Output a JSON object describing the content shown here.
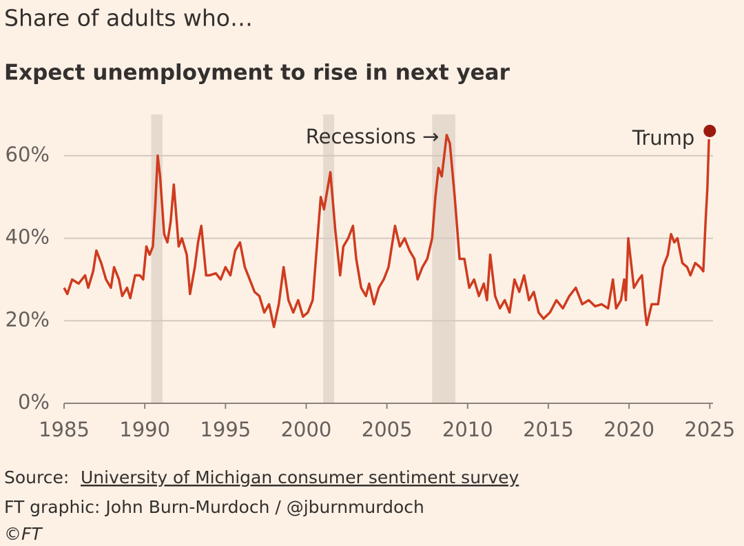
{
  "chart_data": {
    "type": "line",
    "title": "Share of adults who…",
    "subtitle": "Expect unemployment to rise in next year",
    "x": [
      1985.0,
      1985.2,
      1985.5,
      1985.9,
      1986.3,
      1986.5,
      1986.8,
      1987.0,
      1987.3,
      1987.6,
      1987.9,
      1988.1,
      1988.4,
      1988.6,
      1988.9,
      1989.1,
      1989.4,
      1989.7,
      1989.9,
      1990.1,
      1990.3,
      1990.5,
      1990.65,
      1990.8,
      1990.95,
      1991.2,
      1991.4,
      1991.6,
      1991.8,
      1992.1,
      1992.3,
      1992.6,
      1992.8,
      1993.1,
      1993.3,
      1993.5,
      1993.8,
      1994.0,
      1994.4,
      1994.7,
      1995.0,
      1995.3,
      1995.6,
      1995.9,
      1996.2,
      1996.5,
      1996.8,
      1997.1,
      1997.4,
      1997.7,
      1998.0,
      1998.3,
      1998.6,
      1998.9,
      1999.2,
      1999.5,
      1999.8,
      2000.1,
      2000.4,
      2000.7,
      2000.9,
      2001.1,
      2001.5,
      2001.8,
      2002.1,
      2002.3,
      2002.6,
      2002.9,
      2003.1,
      2003.4,
      2003.7,
      2003.9,
      2004.2,
      2004.5,
      2004.8,
      2005.1,
      2005.5,
      2005.8,
      2006.1,
      2006.4,
      2006.7,
      2006.9,
      2007.2,
      2007.5,
      2007.8,
      2008.0,
      2008.2,
      2008.4,
      2008.7,
      2008.9,
      2009.2,
      2009.5,
      2009.8,
      2010.1,
      2010.4,
      2010.7,
      2011.0,
      2011.2,
      2011.4,
      2011.7,
      2012.0,
      2012.3,
      2012.6,
      2012.9,
      2013.2,
      2013.5,
      2013.8,
      2014.1,
      2014.4,
      2014.7,
      2015.1,
      2015.5,
      2015.9,
      2016.3,
      2016.7,
      2017.1,
      2017.5,
      2017.9,
      2018.3,
      2018.7,
      2019.0,
      2019.2,
      2019.5,
      2019.7,
      2019.8,
      2019.95,
      2020.3,
      2020.6,
      2020.8,
      2021.0,
      2021.1,
      2021.4,
      2021.8,
      2022.1,
      2022.4,
      2022.6,
      2022.8,
      2023.0,
      2023.3,
      2023.6,
      2023.8,
      2024.1,
      2024.4,
      2024.6,
      2024.75,
      2024.85,
      2024.95
    ],
    "values": [
      28,
      26.5,
      30,
      29,
      31,
      28,
      32,
      37,
      34,
      30,
      28,
      33,
      30,
      26,
      28,
      25.5,
      31,
      31,
      30,
      38,
      36,
      38,
      48,
      60,
      55,
      41,
      39,
      44,
      53,
      38,
      40,
      36,
      26.5,
      33,
      39,
      43,
      31,
      31,
      31.5,
      30,
      33,
      31,
      37,
      39,
      33,
      30,
      27,
      26,
      22,
      24,
      18.5,
      24,
      33,
      25,
      22,
      25,
      21,
      22,
      25,
      40,
      50,
      47,
      56,
      42,
      31,
      38,
      40,
      43,
      35,
      28,
      26,
      29,
      24,
      28,
      30,
      33,
      43,
      38,
      40,
      37,
      35,
      30,
      33,
      35,
      40,
      50,
      57,
      55,
      65,
      63,
      50,
      35,
      35,
      28,
      30,
      26,
      29,
      25,
      36,
      26,
      23,
      25,
      22,
      30,
      27,
      31,
      25,
      27,
      22,
      20.5,
      22,
      25,
      23,
      26,
      28,
      24,
      25,
      23.5,
      24,
      23,
      30,
      23,
      25,
      30,
      25,
      40,
      28,
      30,
      31,
      22,
      19,
      24,
      24,
      33,
      36,
      41,
      39,
      40,
      34,
      33,
      31,
      34,
      33,
      32,
      45,
      52,
      64
    ],
    "color": "#cf3b1e",
    "highlight": {
      "label": "Trump",
      "x": 2025,
      "value": 66,
      "color": "#9b1a0e"
    },
    "recessions": [
      {
        "start": 1990.4,
        "end": 1991.1
      },
      {
        "start": 2001.05,
        "end": 2001.73
      },
      {
        "start": 2007.8,
        "end": 2009.24
      }
    ],
    "recession_label": "Recessions →",
    "xlim": [
      1985,
      2025.2
    ],
    "xticks": [
      1985,
      1990,
      1995,
      2000,
      2005,
      2010,
      2015,
      2020,
      2025
    ],
    "ylim": [
      0,
      70
    ],
    "yticks": [
      {
        "value": 0,
        "label": "0%"
      },
      {
        "value": 20,
        "label": "20%"
      },
      {
        "value": 40,
        "label": "40%"
      },
      {
        "value": 60,
        "label": "60%"
      }
    ],
    "grid": true,
    "source_prefix": "Source:",
    "source_link": "University of Michigan consumer sentiment survey",
    "credit": "FT graphic: John Burn-Murdoch / @jburnmurdoch",
    "copyright": "©FT"
  }
}
